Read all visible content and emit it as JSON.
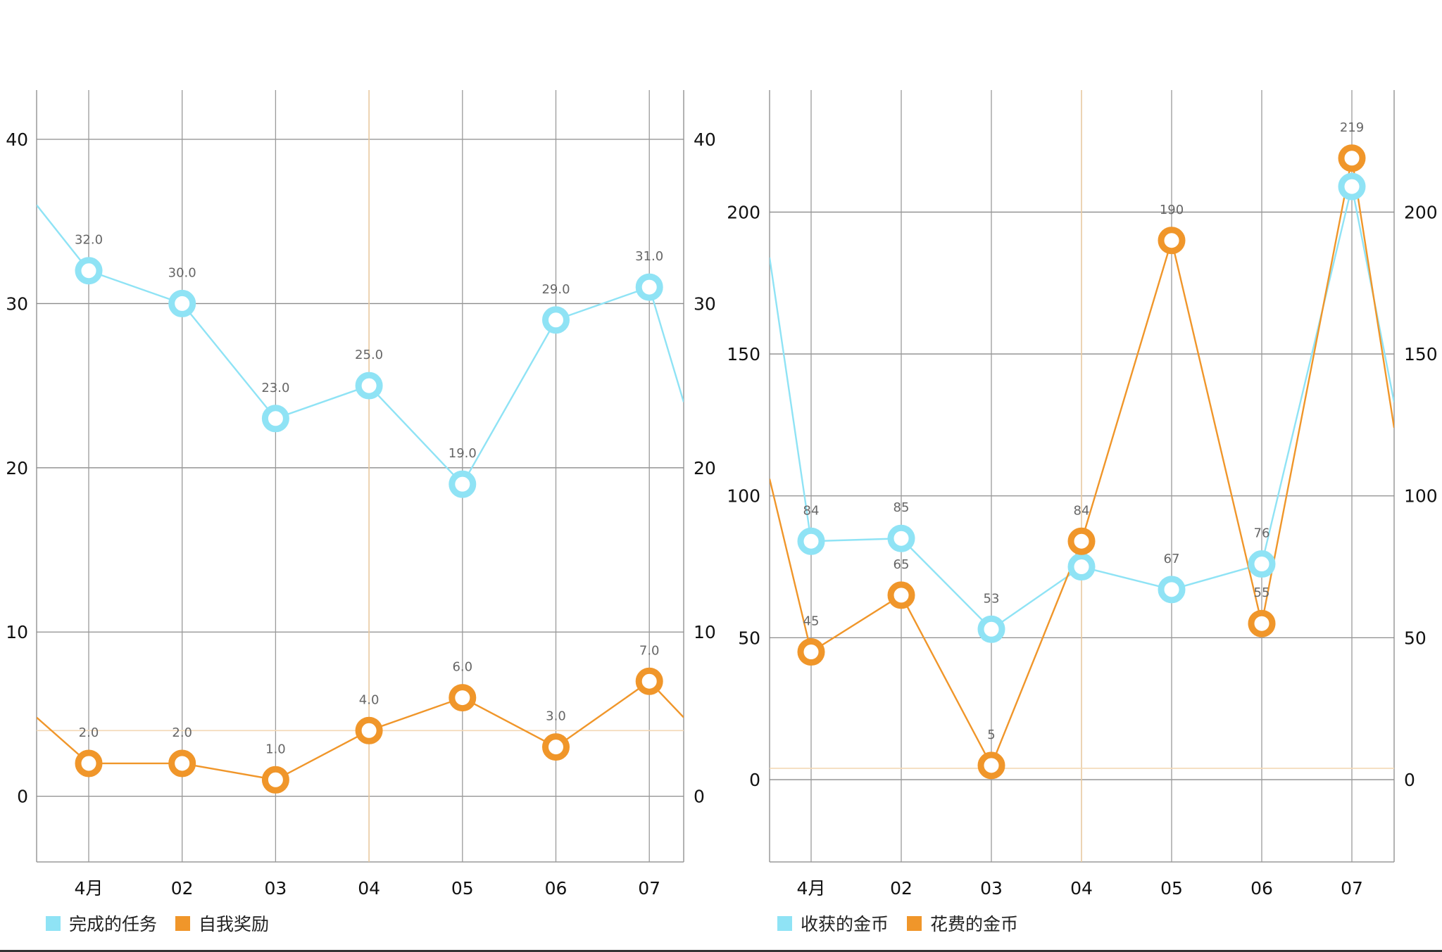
{
  "chart_data": [
    {
      "type": "line",
      "categories": [
        "4月",
        "02",
        "03",
        "04",
        "05",
        "06",
        "07"
      ],
      "ylim": [
        -4,
        43
      ],
      "yticks": [
        0,
        10,
        20,
        30,
        40
      ],
      "grid": true,
      "legend_position": "bottom-left",
      "highlight_category": "04",
      "highlight_value": 4,
      "edge_values": {
        "left": [
          36,
          4.8
        ],
        "right": [
          24,
          4.8
        ]
      },
      "series": [
        {
          "name": "完成的任务",
          "color": "#8fe3f5",
          "values": [
            32,
            30,
            23,
            25,
            19,
            29,
            31
          ],
          "labels": [
            "32.0",
            "30.0",
            "23.0",
            "25.0",
            "19.0",
            "29.0",
            "31.0"
          ]
        },
        {
          "name": "自我奖励",
          "color": "#f0962a",
          "values": [
            2,
            2,
            1,
            4,
            6,
            3,
            7
          ],
          "labels": [
            "2.0",
            "2.0",
            "1.0",
            "4.0",
            "6.0",
            "3.0",
            "7.0"
          ]
        }
      ]
    },
    {
      "type": "line",
      "categories": [
        "4月",
        "02",
        "03",
        "04",
        "05",
        "06",
        "07"
      ],
      "ylim": [
        -29,
        243
      ],
      "yticks": [
        0,
        50,
        100,
        150,
        200
      ],
      "grid": true,
      "legend_position": "bottom-left",
      "highlight_category": "04",
      "highlight_value": 4,
      "edge_values": {
        "left": [
          184,
          106
        ],
        "right": [
          133,
          124
        ]
      },
      "series": [
        {
          "name": "收获的金币",
          "color": "#8fe3f5",
          "values": [
            84,
            85,
            53,
            75,
            67,
            76,
            209
          ],
          "labels": [
            "84",
            "85",
            "53",
            "75",
            "67",
            "76",
            "209"
          ]
        },
        {
          "name": "花费的金币",
          "color": "#f0962a",
          "values": [
            45,
            65,
            5,
            84,
            190,
            55,
            219
          ],
          "labels": [
            "45",
            "65",
            "5",
            "84",
            "190",
            "55",
            "219"
          ]
        }
      ]
    }
  ]
}
